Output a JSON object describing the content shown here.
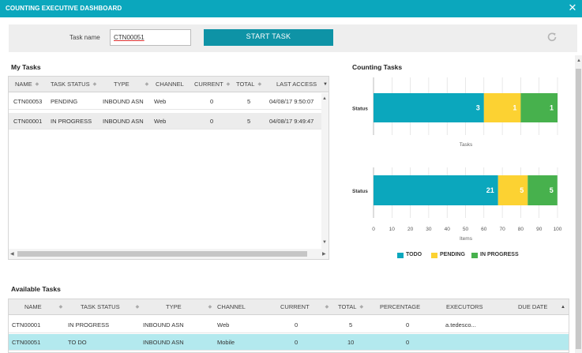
{
  "window": {
    "title": "COUNTING EXECUTIVE DASHBOARD",
    "close_icon": "close-icon"
  },
  "toolbar": {
    "task_name_label": "Task name",
    "task_name_value": "CTN00051",
    "start_label": "START TASK",
    "refresh_icon": "refresh-icon"
  },
  "my_tasks": {
    "title": "My Tasks",
    "columns": [
      "NAME",
      "TASK STATUS",
      "TYPE",
      "CHANNEL",
      "CURRENT",
      "TOTAL",
      "LAST ACCESS"
    ],
    "rows": [
      [
        "CTN00053",
        "PENDING",
        "INBOUND ASN",
        "Web",
        "0",
        "5",
        "04/08/17 9:50:07"
      ],
      [
        "CTN00001",
        "IN PROGRESS",
        "INBOUND ASN",
        "Web",
        "0",
        "5",
        "04/08/17 9:49:47"
      ]
    ]
  },
  "counting_tasks": {
    "title": "Counting Tasks",
    "legend": [
      "TODO",
      "PENDING",
      "IN PROGRESS"
    ],
    "colors": {
      "todo": "#0ba7bd",
      "pending": "#fcd232",
      "in_progress": "#47b14d"
    }
  },
  "chart_data": [
    {
      "type": "bar",
      "orientation": "horizontal",
      "stacked": true,
      "categories": [
        "Status"
      ],
      "xlabel": "Tasks",
      "xlim": [
        0,
        5
      ],
      "series": [
        {
          "name": "TODO",
          "values": [
            3
          ]
        },
        {
          "name": "PENDING",
          "values": [
            1
          ]
        },
        {
          "name": "IN PROGRESS",
          "values": [
            1
          ]
        }
      ],
      "data_labels": [
        "3",
        "1",
        "1"
      ]
    },
    {
      "type": "bar",
      "orientation": "horizontal",
      "stacked": true,
      "categories": [
        "Status"
      ],
      "xlabel": "Items",
      "xlim": [
        0,
        100
      ],
      "xticks": [
        "0",
        "10",
        "20",
        "30",
        "40",
        "50",
        "60",
        "70",
        "80",
        "90",
        "100"
      ],
      "series": [
        {
          "name": "TODO",
          "values": [
            67.7
          ]
        },
        {
          "name": "PENDING",
          "values": [
            16.1
          ]
        },
        {
          "name": "IN PROGRESS",
          "values": [
            16.1
          ]
        }
      ],
      "data_labels": [
        "21",
        "5",
        "5"
      ]
    }
  ],
  "available_tasks": {
    "title": "Available Tasks",
    "columns": [
      "NAME",
      "TASK STATUS",
      "TYPE",
      "CHANNEL",
      "CURRENT",
      "TOTAL",
      "PERCENTAGE",
      "EXECUTORS",
      "DUE DATE"
    ],
    "rows": [
      [
        "CTN00001",
        "IN PROGRESS",
        "INBOUND ASN",
        "Web",
        "0",
        "5",
        "0",
        "a.tedesco...",
        ""
      ],
      [
        "CTN00051",
        "TO DO",
        "INBOUND ASN",
        "Mobile",
        "0",
        "10",
        "0",
        "",
        ""
      ]
    ]
  }
}
